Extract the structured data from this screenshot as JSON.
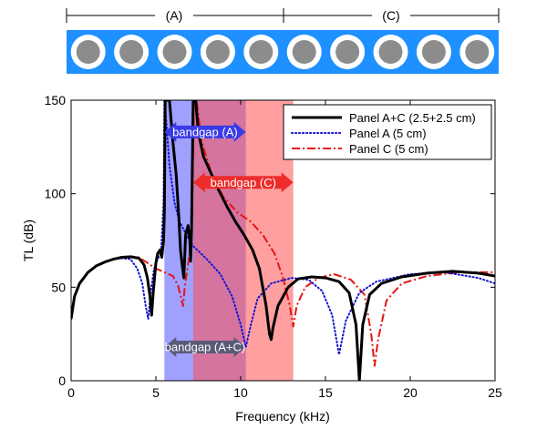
{
  "colors": {
    "panel_bg": "#1e90ff",
    "inclusion_outer": "#ffffff",
    "inclusion_inner": "#8c8c8c",
    "bandgap_A_fill": "#6666ff",
    "bandgap_C_fill": "#ff5050",
    "bandgap_AC_arrow": "#5a5a78",
    "bandgap_A_arrow": "#3a3ae6",
    "bandgap_C_arrow": "#ee2c2c",
    "series_AC": "#000000",
    "series_A": "#1414d2",
    "series_C": "#e61414"
  },
  "panel_diagram": {
    "label_A": "(A)",
    "label_C": "(C)",
    "inclusion_count": 10
  },
  "chart_data": {
    "type": "line",
    "title": "",
    "xlabel": "Frequency (kHz)",
    "ylabel": "TL (dB)",
    "xlim": [
      0,
      25
    ],
    "ylim": [
      0,
      150
    ],
    "xticks": [
      0,
      5,
      10,
      15,
      20,
      25
    ],
    "yticks": [
      0,
      50,
      100,
      150
    ],
    "legend_position": "top-right",
    "bandgaps": [
      {
        "name": "A",
        "label": "bandgap (A)",
        "x_start": 5.5,
        "x_end": 10.3,
        "arrow_y": 133
      },
      {
        "name": "C",
        "label": "bandgap (C)",
        "x_start": 7.2,
        "x_end": 13.1,
        "arrow_y": 106
      },
      {
        "name": "AC",
        "label": "bandgap (A+C)",
        "x_start": 5.5,
        "x_end": 10.3,
        "arrow_y": 18
      }
    ],
    "series": [
      {
        "name": "Panel A+C (2.5+2.5 cm)",
        "style": "solid",
        "points": [
          [
            0,
            33
          ],
          [
            0.2,
            45
          ],
          [
            0.5,
            52
          ],
          [
            1,
            58
          ],
          [
            1.5,
            61.5
          ],
          [
            2,
            63.5
          ],
          [
            2.5,
            65
          ],
          [
            3,
            66
          ],
          [
            3.5,
            66.3
          ],
          [
            4,
            65.5
          ],
          [
            4.3,
            62
          ],
          [
            4.5,
            55
          ],
          [
            4.65,
            45
          ],
          [
            4.75,
            35
          ],
          [
            4.85,
            48
          ],
          [
            5,
            63
          ],
          [
            5.1,
            68
          ],
          [
            5.25,
            70
          ],
          [
            5.35,
            66
          ],
          [
            5.45,
            75
          ],
          [
            5.5,
            90
          ],
          [
            5.55,
            150
          ],
          [
            5.8,
            150
          ],
          [
            6,
            128
          ],
          [
            6.2,
            110
          ],
          [
            6.35,
            88
          ],
          [
            6.45,
            70
          ],
          [
            6.55,
            62
          ],
          [
            6.65,
            55
          ],
          [
            6.75,
            78
          ],
          [
            6.9,
            83
          ],
          [
            7,
            75
          ],
          [
            7.05,
            64
          ],
          [
            7.1,
            80
          ],
          [
            7.2,
            150
          ],
          [
            7.35,
            150
          ],
          [
            7.5,
            133
          ],
          [
            7.8,
            120
          ],
          [
            8.2,
            112
          ],
          [
            8.7,
            102
          ],
          [
            9.2,
            93
          ],
          [
            9.7,
            85
          ],
          [
            10.2,
            78
          ],
          [
            10.7,
            70
          ],
          [
            11.1,
            60
          ],
          [
            11.5,
            40
          ],
          [
            11.7,
            25
          ],
          [
            11.8,
            22
          ],
          [
            11.9,
            28
          ],
          [
            12.2,
            40
          ],
          [
            12.8,
            50
          ],
          [
            13.4,
            54.5
          ],
          [
            14.2,
            55.5
          ],
          [
            15,
            55
          ],
          [
            15.8,
            53
          ],
          [
            16.4,
            47
          ],
          [
            16.8,
            30
          ],
          [
            17,
            0
          ],
          [
            17.2,
            30
          ],
          [
            17.6,
            46
          ],
          [
            18.3,
            52
          ],
          [
            19.5,
            55.5
          ],
          [
            21,
            57.5
          ],
          [
            22.5,
            58.5
          ],
          [
            24,
            57.5
          ],
          [
            25,
            56
          ]
        ]
      },
      {
        "name": "Panel A (5 cm)",
        "style": "dotted",
        "points": [
          [
            0,
            33
          ],
          [
            0.2,
            45
          ],
          [
            0.5,
            52
          ],
          [
            1,
            58
          ],
          [
            1.5,
            61.5
          ],
          [
            2,
            63.5
          ],
          [
            2.5,
            65
          ],
          [
            3,
            65.5
          ],
          [
            3.5,
            65
          ],
          [
            3.9,
            60
          ],
          [
            4.2,
            52
          ],
          [
            4.4,
            40
          ],
          [
            4.55,
            33
          ],
          [
            4.7,
            48
          ],
          [
            4.9,
            60
          ],
          [
            5.1,
            65
          ],
          [
            5.3,
            68
          ],
          [
            5.45,
            95
          ],
          [
            5.5,
            150
          ],
          [
            5.6,
            140
          ],
          [
            5.8,
            115
          ],
          [
            6.1,
            95
          ],
          [
            6.4,
            85
          ],
          [
            6.8,
            78
          ],
          [
            7.2,
            72
          ],
          [
            8,
            65
          ],
          [
            8.8,
            57
          ],
          [
            9.5,
            45
          ],
          [
            10,
            30
          ],
          [
            10.3,
            18
          ],
          [
            10.6,
            30
          ],
          [
            11,
            44
          ],
          [
            11.8,
            52
          ],
          [
            13,
            55
          ],
          [
            14,
            54
          ],
          [
            14.8,
            48
          ],
          [
            15.4,
            35
          ],
          [
            15.8,
            14
          ],
          [
            16.2,
            32
          ],
          [
            17,
            47
          ],
          [
            18,
            53
          ],
          [
            20,
            57
          ],
          [
            22,
            58
          ],
          [
            24,
            55
          ],
          [
            25,
            52
          ]
        ]
      },
      {
        "name": "Panel C (5 cm)",
        "style": "dashdot",
        "points": [
          [
            0,
            33
          ],
          [
            0.2,
            45
          ],
          [
            0.5,
            52
          ],
          [
            1,
            58
          ],
          [
            1.5,
            61.5
          ],
          [
            2,
            63.5
          ],
          [
            2.5,
            65
          ],
          [
            3,
            66
          ],
          [
            3.5,
            66.5
          ],
          [
            4,
            66
          ],
          [
            4.5,
            63
          ],
          [
            5,
            60
          ],
          [
            5.5,
            58
          ],
          [
            6,
            56
          ],
          [
            6.3,
            51
          ],
          [
            6.5,
            44
          ],
          [
            6.6,
            40
          ],
          [
            6.7,
            50
          ],
          [
            6.9,
            62
          ],
          [
            7.1,
            75
          ],
          [
            7.25,
            150
          ],
          [
            7.4,
            150
          ],
          [
            7.7,
            128
          ],
          [
            8.3,
            110
          ],
          [
            9,
            98
          ],
          [
            9.8,
            90
          ],
          [
            10.6,
            85
          ],
          [
            11.3,
            78
          ],
          [
            12,
            68
          ],
          [
            12.5,
            55
          ],
          [
            12.9,
            40
          ],
          [
            13.1,
            29
          ],
          [
            13.3,
            40
          ],
          [
            13.8,
            50
          ],
          [
            14.6,
            55
          ],
          [
            15.5,
            57
          ],
          [
            16.5,
            54
          ],
          [
            17.3,
            46
          ],
          [
            17.7,
            25
          ],
          [
            17.9,
            8
          ],
          [
            18.1,
            22
          ],
          [
            18.6,
            43
          ],
          [
            19.5,
            52
          ],
          [
            21,
            56
          ],
          [
            23,
            58
          ],
          [
            25,
            58
          ]
        ]
      }
    ]
  }
}
